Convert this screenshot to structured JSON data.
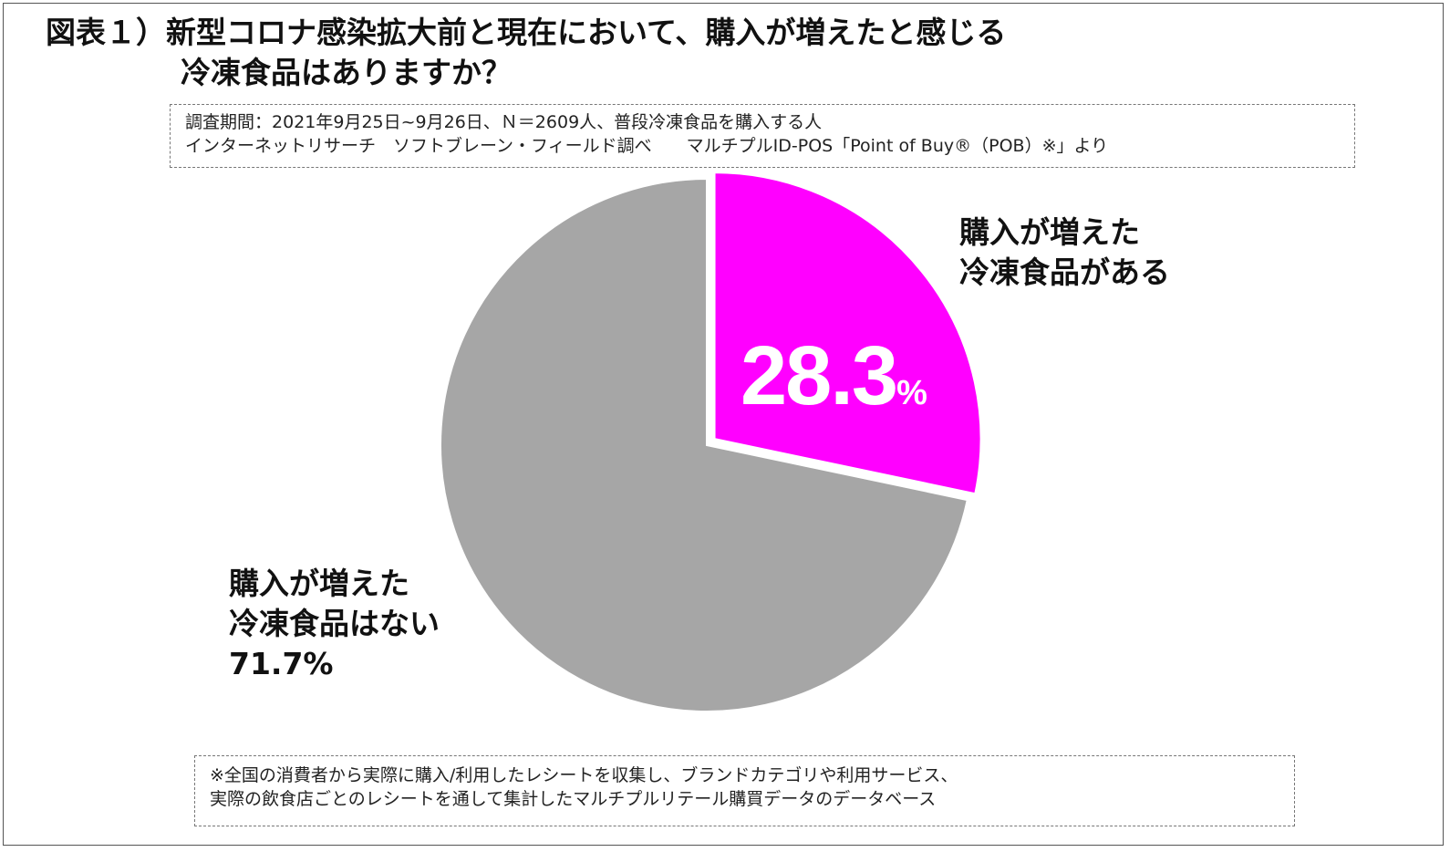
{
  "title": {
    "line1": "図表１）新型コロナ感染拡大前と現在において、購入が増えたと感じる",
    "line2": "冷凍食品はありますか？"
  },
  "survey_note": {
    "line1": "調査期間：2021年9月25日~9月26日、Ｎ＝2609人、普段冷凍食品を購入する人",
    "line2": "インターネットリサーチ　ソフトブレーン・フィールド調べ　　マルチプルID-POS「Point of Buy®（POB）※」より"
  },
  "footnote": {
    "line1": "※全国の消費者から実際に購入/利用したレシートを収集し、ブランドカテゴリや利用サービス、",
    "line2": "実際の飲食店ごとのレシートを通して集計したマルチプルリテール購買データのデータベース"
  },
  "chart_data": {
    "type": "pie",
    "slices": [
      {
        "label_line1": "購入が増えた",
        "label_line2": "冷凍食品がある",
        "value": 28.3,
        "value_number": "28.3",
        "value_unit": "%",
        "color": "#FF00FF",
        "exploded": true
      },
      {
        "label_line1": "購入が増えた",
        "label_line2": "冷凍食品はない",
        "value": 71.7,
        "value_text": "71.7%",
        "color": "#A6A6A6",
        "exploded": false
      }
    ],
    "start_angle_deg": 0,
    "direction": "clockwise"
  }
}
